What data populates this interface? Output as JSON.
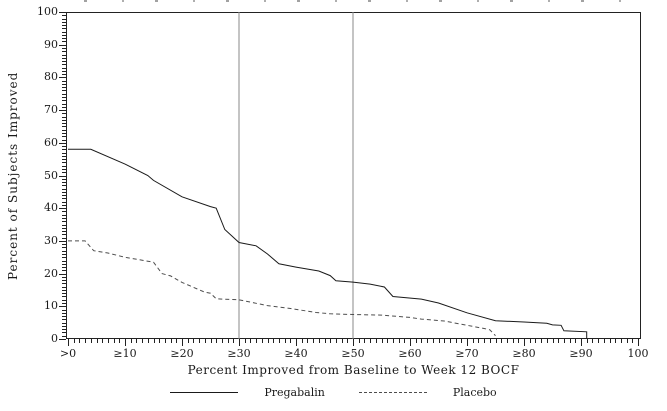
{
  "chart_data": {
    "type": "line",
    "title": "",
    "xlabel": "Percent Improved from Baseline to Week 12 BOCF",
    "ylabel": "Percent of Subjects Improved",
    "xlim": [
      0,
      100
    ],
    "ylim": [
      0,
      100
    ],
    "grid": "off",
    "legend_position": "bottom-center",
    "minor_tick_step": 1,
    "major_tick_step": 10,
    "y_ticks": [
      100,
      90,
      80,
      70,
      60,
      50,
      40,
      30,
      20,
      10,
      0
    ],
    "x_ticks": [
      {
        "value": 0,
        "label": ">0"
      },
      {
        "value": 10,
        "label": "≥10"
      },
      {
        "value": 20,
        "label": "≥20"
      },
      {
        "value": 30,
        "label": "≥30"
      },
      {
        "value": 40,
        "label": "≥40"
      },
      {
        "value": 50,
        "label": "≥50"
      },
      {
        "value": 60,
        "label": "≥60"
      },
      {
        "value": 70,
        "label": "≥70"
      },
      {
        "value": 80,
        "label": "≥80"
      },
      {
        "value": 90,
        "label": "≥90"
      },
      {
        "value": 100,
        "label": "100"
      }
    ],
    "reference_lines_x": [
      30,
      50
    ],
    "colors": {
      "axis": "#222222",
      "reference_line": "#888888",
      "background": "#ffffff"
    },
    "series": [
      {
        "name": "Pregabalin",
        "line_style": "solid",
        "color": "#1a1a1a",
        "points": [
          [
            0,
            58
          ],
          [
            4,
            58
          ],
          [
            10,
            53.5
          ],
          [
            14,
            50
          ],
          [
            15,
            48.5
          ],
          [
            20,
            43.5
          ],
          [
            25,
            40.5
          ],
          [
            26,
            40
          ],
          [
            27.5,
            33.5
          ],
          [
            30,
            29.5
          ],
          [
            33,
            28.5
          ],
          [
            35,
            26
          ],
          [
            37,
            23
          ],
          [
            40,
            22
          ],
          [
            44,
            20.8
          ],
          [
            46,
            19.4
          ],
          [
            47,
            17.8
          ],
          [
            50,
            17.4
          ],
          [
            53,
            16.8
          ],
          [
            55.5,
            15.9
          ],
          [
            57,
            13
          ],
          [
            62,
            12.2
          ],
          [
            65,
            11
          ],
          [
            70,
            8
          ],
          [
            75,
            5.6
          ],
          [
            80,
            5.2
          ],
          [
            84,
            4.8
          ],
          [
            85,
            4.3
          ],
          [
            86.5,
            4.2
          ],
          [
            87,
            2.5
          ],
          [
            91,
            2.2
          ],
          [
            91,
            0
          ]
        ]
      },
      {
        "name": "Placebo",
        "line_style": "dashed",
        "color": "#4d4d4d",
        "points": [
          [
            0,
            30
          ],
          [
            3,
            30
          ],
          [
            4.5,
            27
          ],
          [
            7,
            26.3
          ],
          [
            10,
            25
          ],
          [
            14,
            23.8
          ],
          [
            15,
            23.5
          ],
          [
            16.5,
            20
          ],
          [
            18,
            19.3
          ],
          [
            20,
            17.3
          ],
          [
            22,
            15.8
          ],
          [
            24,
            14.3
          ],
          [
            25,
            14
          ],
          [
            26,
            12.3
          ],
          [
            30,
            12
          ],
          [
            35,
            10.2
          ],
          [
            39.5,
            9.2
          ],
          [
            43.5,
            8.1
          ],
          [
            46,
            7.7
          ],
          [
            50,
            7.5
          ],
          [
            55,
            7.3
          ],
          [
            60,
            6.6
          ],
          [
            62,
            6.1
          ],
          [
            66,
            5.5
          ],
          [
            70,
            4.2
          ],
          [
            73,
            3.2
          ],
          [
            74,
            2.8
          ],
          [
            75,
            1
          ]
        ]
      }
    ]
  }
}
